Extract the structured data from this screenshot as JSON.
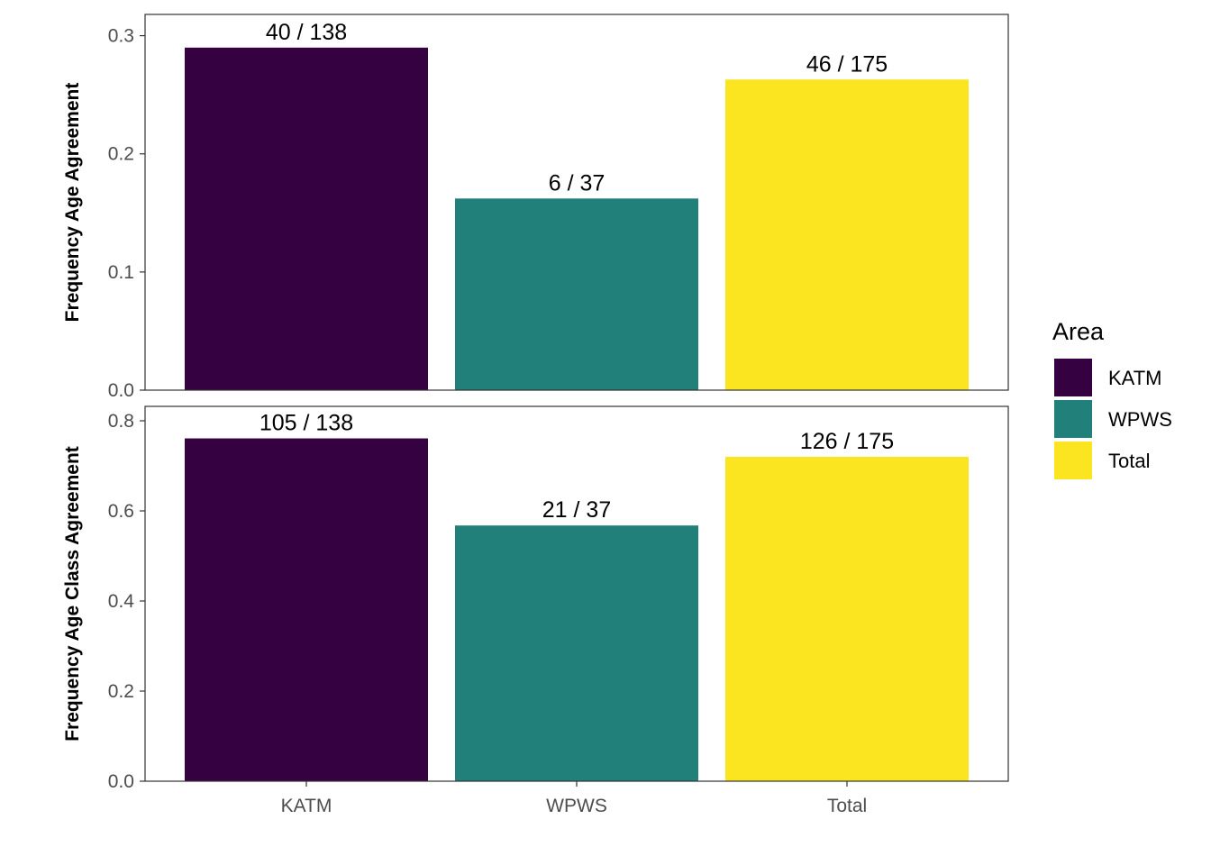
{
  "legend": {
    "title": "Area",
    "items": [
      {
        "label": "KATM",
        "color": "#360140"
      },
      {
        "label": "WPWS",
        "color": "#21807A"
      },
      {
        "label": "Total",
        "color": "#FBE420"
      }
    ]
  },
  "chart_data": [
    {
      "type": "bar",
      "categories": [
        "KATM",
        "WPWS",
        "Total"
      ],
      "values": [
        0.2899,
        0.1622,
        0.2629
      ],
      "data_labels": [
        "40 / 138",
        "6 / 37",
        "46 / 175"
      ],
      "colors": [
        "#360140",
        "#21807A",
        "#FBE420"
      ],
      "ylabel": "Frequency Age Agreement",
      "ylim": [
        0,
        0.318
      ],
      "yticks": [
        0.0,
        0.1,
        0.2,
        0.3
      ],
      "ytick_labels": [
        "0.0",
        "0.1",
        "0.2",
        "0.3"
      ],
      "show_x_ticks": false
    },
    {
      "type": "bar",
      "categories": [
        "KATM",
        "WPWS",
        "Total"
      ],
      "values": [
        0.7609,
        0.5676,
        0.72
      ],
      "data_labels": [
        "105 / 138",
        "21 / 37",
        "126 / 175"
      ],
      "colors": [
        "#360140",
        "#21807A",
        "#FBE420"
      ],
      "ylabel": "Frequency Age Class Agreement",
      "ylim": [
        0,
        0.832
      ],
      "yticks": [
        0.0,
        0.2,
        0.4,
        0.6,
        0.8
      ],
      "ytick_labels": [
        "0.0",
        "0.2",
        "0.4",
        "0.6",
        "0.8"
      ],
      "show_x_ticks": true
    }
  ]
}
